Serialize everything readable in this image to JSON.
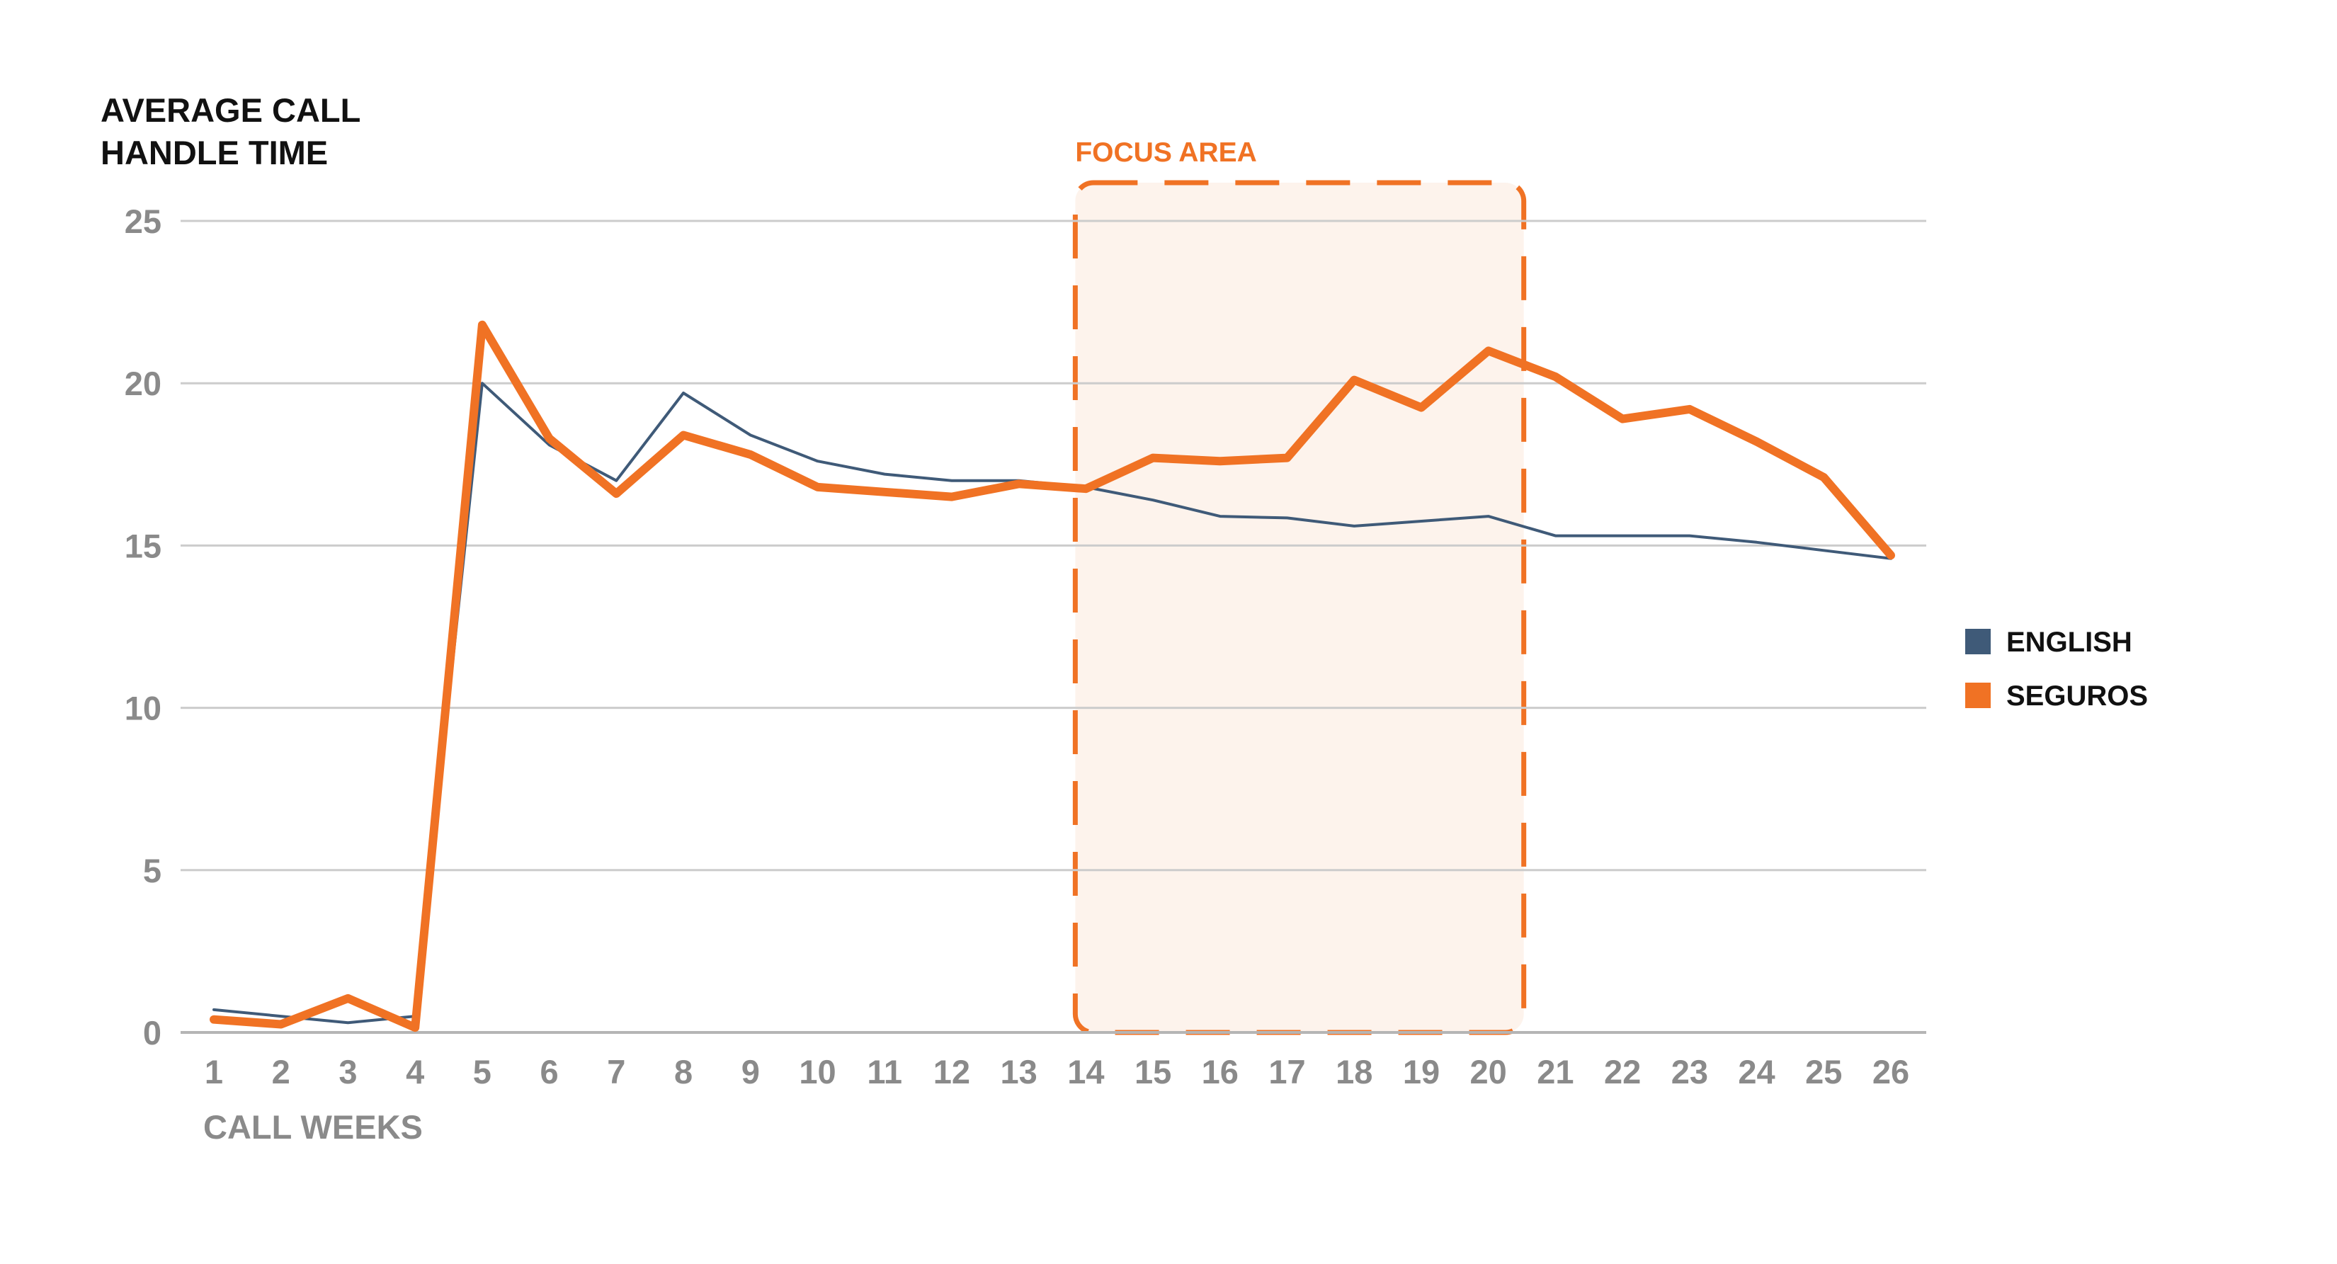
{
  "chart_data": {
    "type": "line",
    "ylabel_lines": [
      "AVERAGE CALL",
      "HANDLE TIME"
    ],
    "xlabel": "CALL WEEKS",
    "x": [
      1,
      2,
      3,
      4,
      5,
      6,
      7,
      8,
      9,
      10,
      11,
      12,
      13,
      14,
      15,
      16,
      17,
      18,
      19,
      20,
      21,
      22,
      23,
      24,
      25,
      26
    ],
    "xticks": [
      "1",
      "2",
      "3",
      "4",
      "5",
      "6",
      "7",
      "8",
      "9",
      "10",
      "11",
      "12",
      "13",
      "14",
      "15",
      "16",
      "17",
      "18",
      "19",
      "20",
      "21",
      "22",
      "23",
      "24",
      "25",
      "26"
    ],
    "yticks": [
      "0",
      "5",
      "10",
      "15",
      "20",
      "25"
    ],
    "ylim": [
      0,
      25
    ],
    "grid": true,
    "legend_position": "right",
    "series": [
      {
        "name": "ENGLISH",
        "color": "#3f5a78",
        "values": [
          0.7,
          0.5,
          0.3,
          0.5,
          20.0,
          18.1,
          17.0,
          19.7,
          18.4,
          17.6,
          17.2,
          17.0,
          17.0,
          16.8,
          16.4,
          15.9,
          15.85,
          15.6,
          15.75,
          15.9,
          15.3,
          15.3,
          15.3,
          15.1,
          14.85,
          14.6
        ]
      },
      {
        "name": "SEGUROS",
        "color": "#f07224",
        "values": [
          0.4,
          0.25,
          1.05,
          0.15,
          21.8,
          18.3,
          16.6,
          18.4,
          17.8,
          16.8,
          16.65,
          16.5,
          16.9,
          16.75,
          17.7,
          17.6,
          17.7,
          20.1,
          19.25,
          21.0,
          20.2,
          18.9,
          19.2,
          18.2,
          17.1,
          14.7
        ]
      }
    ],
    "annotations": [
      {
        "text": "FOCUS AREA",
        "x_range": [
          14,
          20
        ],
        "color": "#f07224"
      }
    ]
  }
}
